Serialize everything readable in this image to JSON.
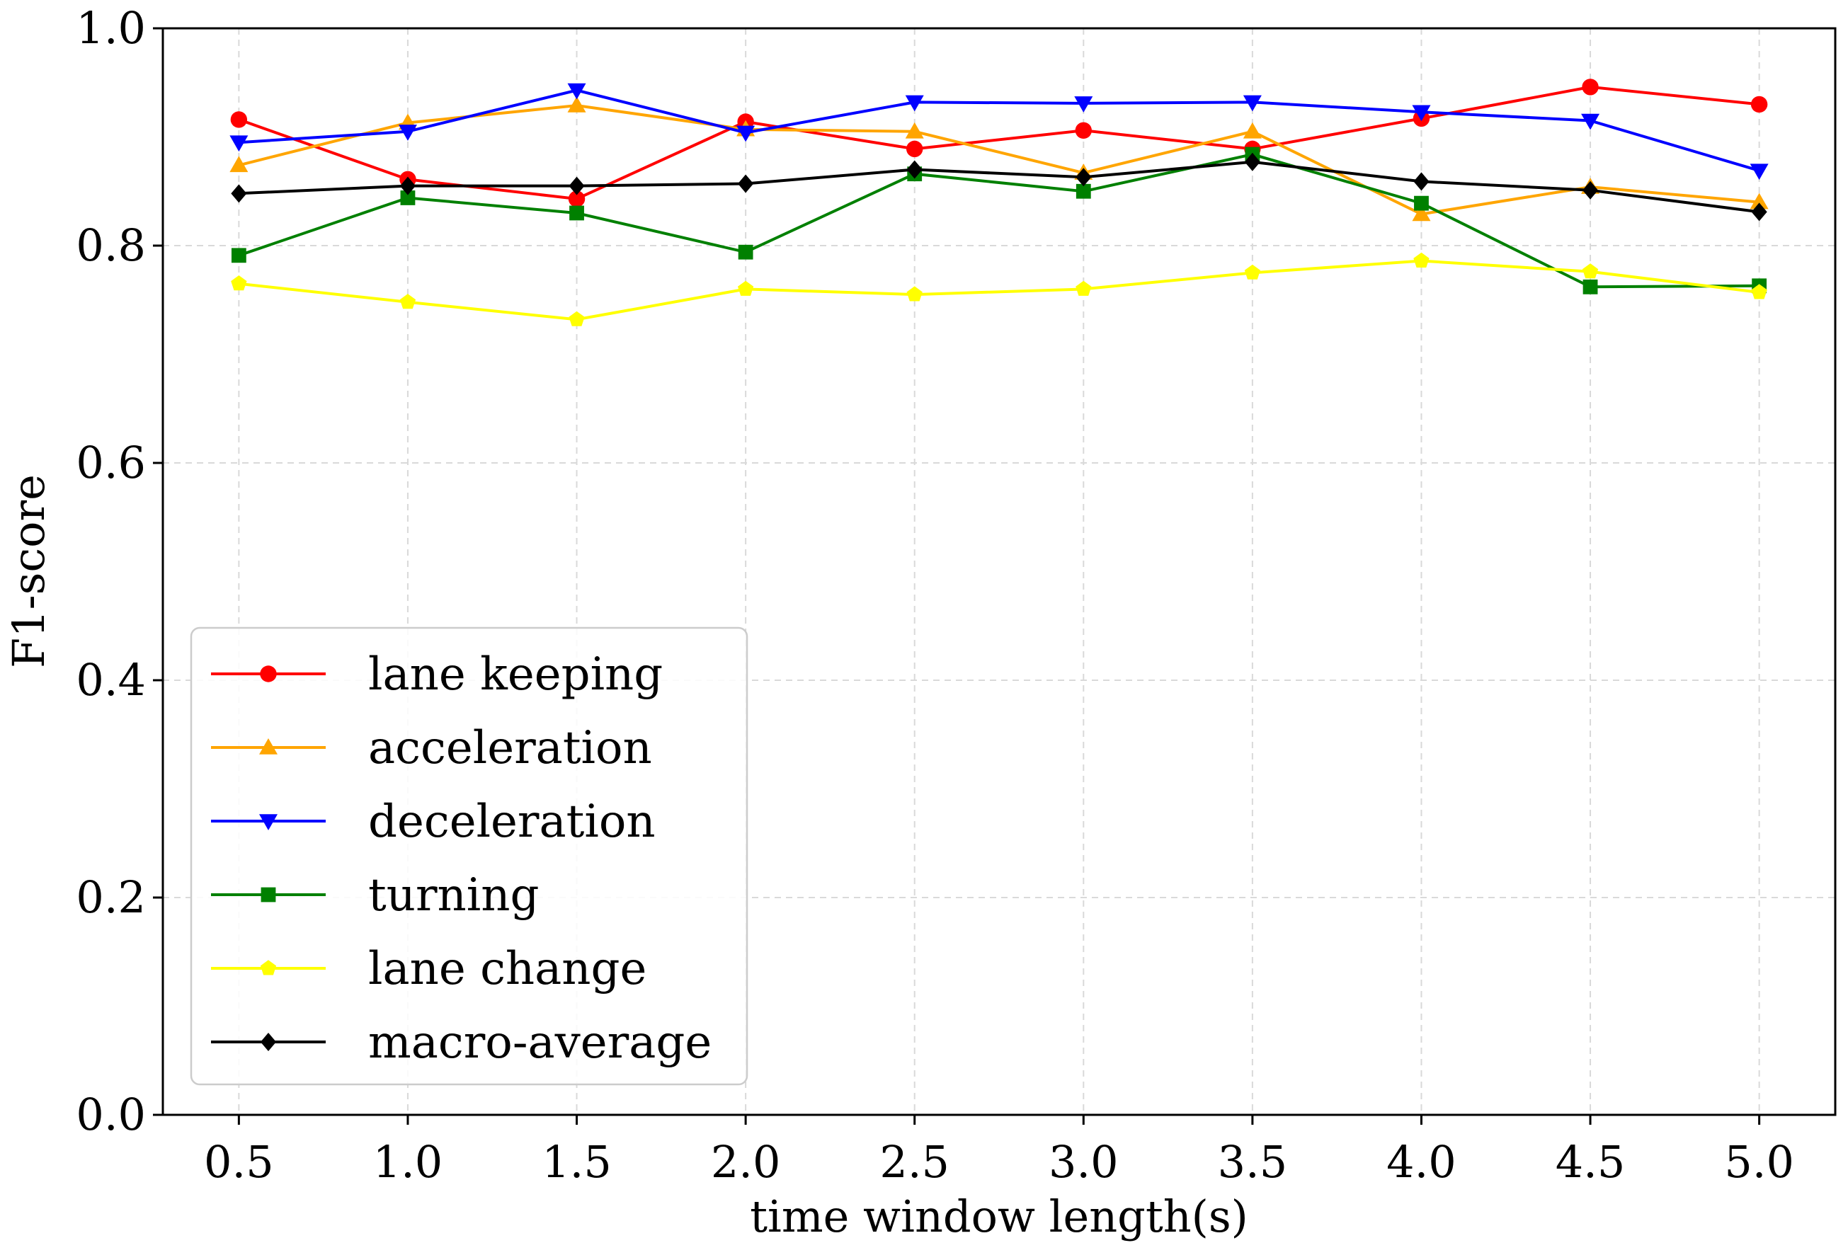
{
  "chart_data": {
    "type": "line",
    "title": "",
    "xlabel": "time window length(s)",
    "ylabel": "F1-score",
    "x": [
      0.5,
      1.0,
      1.5,
      2.0,
      2.5,
      3.0,
      3.5,
      4.0,
      4.5,
      5.0
    ],
    "xtick_labels": [
      "0.5",
      "1.0",
      "1.5",
      "2.0",
      "2.5",
      "3.0",
      "3.5",
      "4.0",
      "4.5",
      "5.0"
    ],
    "ylim": [
      0.0,
      1.0
    ],
    "yticks": [
      0.0,
      0.2,
      0.4,
      0.6,
      0.8,
      1.0
    ],
    "ytick_labels": [
      "0.0",
      "0.2",
      "0.4",
      "0.6",
      "0.8",
      "1.0"
    ],
    "grid": true,
    "legend_position": "lower-left",
    "series": [
      {
        "name": "lane keeping",
        "color": "#ff0000",
        "marker": "circle",
        "values": [
          0.916,
          0.861,
          0.843,
          0.914,
          0.889,
          0.906,
          0.889,
          0.917,
          0.946,
          0.93
        ]
      },
      {
        "name": "acceleration",
        "color": "#ffa500",
        "marker": "triangle-up",
        "values": [
          0.874,
          0.913,
          0.929,
          0.907,
          0.905,
          0.867,
          0.905,
          0.829,
          0.854,
          0.84
        ]
      },
      {
        "name": "deceleration",
        "color": "#0000ff",
        "marker": "triangle-down",
        "values": [
          0.895,
          0.905,
          0.943,
          0.904,
          0.932,
          0.931,
          0.932,
          0.923,
          0.915,
          0.869
        ]
      },
      {
        "name": "turning",
        "color": "#008000",
        "marker": "square",
        "values": [
          0.791,
          0.844,
          0.83,
          0.794,
          0.866,
          0.85,
          0.884,
          0.839,
          0.762,
          0.763
        ]
      },
      {
        "name": "lane change",
        "color": "#ffff00",
        "marker": "pentagon",
        "values": [
          0.765,
          0.748,
          0.732,
          0.76,
          0.755,
          0.76,
          0.775,
          0.786,
          0.776,
          0.757
        ]
      },
      {
        "name": "macro-average",
        "color": "#000000",
        "marker": "diamond",
        "values": [
          0.848,
          0.855,
          0.855,
          0.857,
          0.87,
          0.863,
          0.877,
          0.859,
          0.851,
          0.831
        ]
      }
    ]
  }
}
